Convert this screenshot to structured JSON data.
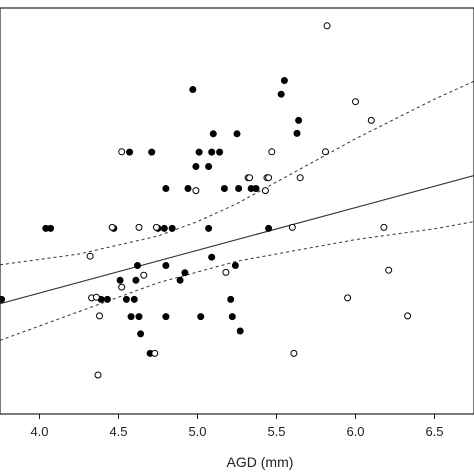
{
  "chart_data": {
    "type": "scatter",
    "xlabel": "AGD (mm)",
    "ylabel": "",
    "xlim": [
      3.75,
      6.75
    ],
    "ylim": [
      0.0,
      1.0
    ],
    "x_ticks": [
      "4.0",
      "4.5",
      "5.0",
      "5.5",
      "6.0",
      "6.5"
    ],
    "x_tick_values": [
      4.0,
      4.5,
      5.0,
      5.5,
      6.0,
      6.5
    ],
    "y_axis_labels_visible": false,
    "grid": false,
    "legend": "none",
    "series": [
      {
        "marker": "filled-circle",
        "color": "#000000",
        "points": [
          [
            3.76,
            0.274
          ],
          [
            4.04,
            0.471
          ],
          [
            4.07,
            0.471
          ],
          [
            4.39,
            0.274
          ],
          [
            4.43,
            0.274
          ],
          [
            4.47,
            0.471
          ],
          [
            4.51,
            0.327
          ],
          [
            4.55,
            0.274
          ],
          [
            4.57,
            0.683
          ],
          [
            4.58,
            0.226
          ],
          [
            4.6,
            0.274
          ],
          [
            4.61,
            0.327
          ],
          [
            4.62,
            0.368
          ],
          [
            4.63,
            0.226
          ],
          [
            4.64,
            0.178
          ],
          [
            4.7,
            0.124
          ],
          [
            4.71,
            0.683
          ],
          [
            4.75,
            0.471
          ],
          [
            4.79,
            0.471
          ],
          [
            4.8,
            0.226
          ],
          [
            4.8,
            0.368
          ],
          [
            4.8,
            0.582
          ],
          [
            4.84,
            0.471
          ],
          [
            4.89,
            0.327
          ],
          [
            4.92,
            0.348
          ],
          [
            4.94,
            0.582
          ],
          [
            4.97,
            0.857
          ],
          [
            4.99,
            0.643
          ],
          [
            5.01,
            0.683
          ],
          [
            5.02,
            0.226
          ],
          [
            5.07,
            0.471
          ],
          [
            5.07,
            0.643
          ],
          [
            5.09,
            0.391
          ],
          [
            5.09,
            0.683
          ],
          [
            5.1,
            0.734
          ],
          [
            5.14,
            0.683
          ],
          [
            5.17,
            0.582
          ],
          [
            5.21,
            0.274
          ],
          [
            5.22,
            0.226
          ],
          [
            5.24,
            0.368
          ],
          [
            5.25,
            0.734
          ],
          [
            5.26,
            0.582
          ],
          [
            5.27,
            0.186
          ],
          [
            5.34,
            0.582
          ],
          [
            5.37,
            0.582
          ],
          [
            5.45,
            0.471
          ],
          [
            5.53,
            0.844
          ],
          [
            5.55,
            0.882
          ],
          [
            5.63,
            0.735
          ],
          [
            5.64,
            0.771
          ]
        ]
      },
      {
        "marker": "open-circle",
        "color": "#000000",
        "points": [
          [
            4.32,
            0.394
          ],
          [
            4.33,
            0.278
          ],
          [
            4.36,
            0.28
          ],
          [
            4.37,
            0.064
          ],
          [
            4.38,
            0.228
          ],
          [
            4.46,
            0.474
          ],
          [
            4.52,
            0.308
          ],
          [
            4.52,
            0.684
          ],
          [
            4.63,
            0.474
          ],
          [
            4.66,
            0.341
          ],
          [
            4.73,
            0.124
          ],
          [
            4.74,
            0.474
          ],
          [
            4.99,
            0.576
          ],
          [
            5.18,
            0.349
          ],
          [
            5.32,
            0.612
          ],
          [
            5.33,
            0.612
          ],
          [
            5.43,
            0.576
          ],
          [
            5.44,
            0.612
          ],
          [
            5.45,
            0.612
          ],
          [
            5.47,
            0.684
          ],
          [
            5.6,
            0.474
          ],
          [
            5.61,
            0.124
          ],
          [
            5.65,
            0.612
          ],
          [
            5.81,
            0.684
          ],
          [
            5.82,
            1.034
          ],
          [
            5.95,
            0.278
          ],
          [
            6.0,
            0.823
          ],
          [
            6.1,
            0.771
          ],
          [
            6.18,
            0.474
          ],
          [
            6.21,
            0.355
          ],
          [
            6.33,
            0.228
          ]
        ]
      }
    ],
    "fit_line": {
      "x": [
        3.75,
        6.75
      ],
      "y": [
        0.262,
        0.618
      ],
      "style": "solid"
    },
    "confidence_band": {
      "style": "dashed",
      "x": [
        3.75,
        4.25,
        4.75,
        5.0,
        5.25,
        5.5,
        6.0,
        6.5,
        6.75
      ],
      "upper": [
        0.37,
        0.4,
        0.45,
        0.49,
        0.54,
        0.6,
        0.72,
        0.83,
        0.88
      ],
      "lower": [
        0.16,
        0.24,
        0.32,
        0.35,
        0.38,
        0.4,
        0.44,
        0.47,
        0.49
      ]
    }
  }
}
